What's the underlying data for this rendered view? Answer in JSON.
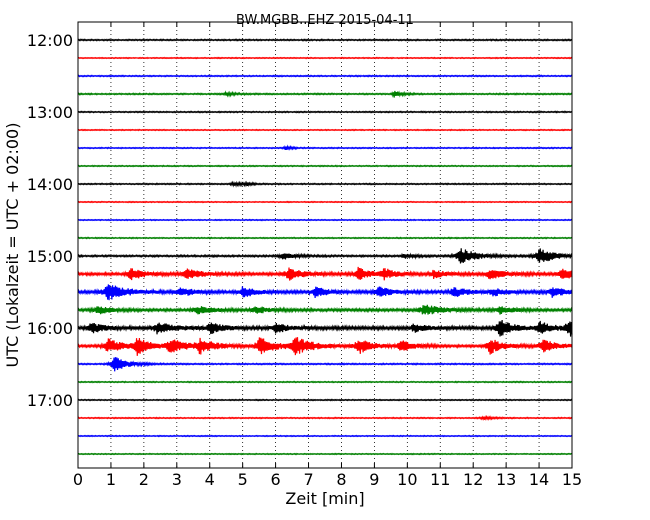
{
  "chart_data": {
    "type": "line",
    "title": "BW.MGBB..EHZ 2015-04-11",
    "xlabel": "Zeit  [min]",
    "ylabel": "UTC (Lokalzeit = UTC + 02:00)",
    "xlim": [
      0,
      15
    ],
    "x_ticks": [
      0,
      1,
      2,
      3,
      4,
      5,
      6,
      7,
      8,
      9,
      10,
      11,
      12,
      13,
      14,
      15
    ],
    "x_tick_labels": [
      "0",
      "1",
      "2",
      "3",
      "4",
      "5",
      "6",
      "7",
      "8",
      "9",
      "10",
      "11",
      "12",
      "13",
      "14",
      "15"
    ],
    "y_ticks": [
      {
        "label": "12:00",
        "trace_index": 0
      },
      {
        "label": "13:00",
        "trace_index": 4
      },
      {
        "label": "14:00",
        "trace_index": 8
      },
      {
        "label": "15:00",
        "trace_index": 12
      },
      {
        "label": "16:00",
        "trace_index": 16
      },
      {
        "label": "17:00",
        "trace_index": 20
      }
    ],
    "trace_interval_min": 15,
    "color_cycle": [
      "#000000",
      "#ff0000",
      "#0000ff",
      "#008000"
    ],
    "grid": "vertical dotted",
    "traces": [
      {
        "start": "12:00",
        "color": "#000000",
        "noise": 0.6,
        "events": []
      },
      {
        "start": "12:15",
        "color": "#ff0000",
        "noise": 0.45,
        "events": []
      },
      {
        "start": "12:30",
        "color": "#0000ff",
        "noise": 0.55,
        "events": []
      },
      {
        "start": "12:45",
        "color": "#008000",
        "noise": 0.6,
        "events": [
          {
            "t": 4.5,
            "a": 1.5,
            "w": 0.15
          },
          {
            "t": 9.6,
            "a": 3.0,
            "w": 0.12
          }
        ]
      },
      {
        "start": "13:00",
        "color": "#000000",
        "noise": 0.55,
        "events": []
      },
      {
        "start": "13:15",
        "color": "#ff0000",
        "noise": 0.45,
        "events": []
      },
      {
        "start": "13:30",
        "color": "#0000ff",
        "noise": 0.5,
        "events": [
          {
            "t": 6.3,
            "a": 1.8,
            "w": 0.1
          }
        ]
      },
      {
        "start": "13:45",
        "color": "#008000",
        "noise": 0.5,
        "events": []
      },
      {
        "start": "14:00",
        "color": "#000000",
        "noise": 0.55,
        "events": [
          {
            "t": 4.7,
            "a": 1.8,
            "w": 0.12
          },
          {
            "t": 5.1,
            "a": 1.5,
            "w": 0.1
          }
        ]
      },
      {
        "start": "14:15",
        "color": "#ff0000",
        "noise": 0.45,
        "events": []
      },
      {
        "start": "14:30",
        "color": "#0000ff",
        "noise": 0.45,
        "events": []
      },
      {
        "start": "14:45",
        "color": "#008000",
        "noise": 0.5,
        "events": []
      },
      {
        "start": "15:00",
        "color": "#000000",
        "noise": 0.8,
        "events": [
          {
            "t": 6.2,
            "a": 3.5,
            "w": 0.2
          },
          {
            "t": 9.9,
            "a": 2.5,
            "w": 0.15
          },
          {
            "t": 11.6,
            "a": 8.5,
            "w": 0.25
          },
          {
            "t": 14.0,
            "a": 8.0,
            "w": 0.25
          }
        ]
      },
      {
        "start": "15:15",
        "color": "#ff0000",
        "noise": 1.2,
        "events": [
          {
            "t": 1.6,
            "a": 6.5,
            "w": 0.2
          },
          {
            "t": 3.3,
            "a": 5.0,
            "w": 0.25
          },
          {
            "t": 6.4,
            "a": 6.0,
            "w": 0.25
          },
          {
            "t": 8.5,
            "a": 6.0,
            "w": 0.2
          },
          {
            "t": 9.3,
            "a": 5.0,
            "w": 0.2
          },
          {
            "t": 10.8,
            "a": 4.0,
            "w": 0.2
          },
          {
            "t": 12.5,
            "a": 5.0,
            "w": 0.25
          },
          {
            "t": 14.7,
            "a": 5.0,
            "w": 0.25
          }
        ]
      },
      {
        "start": "15:30",
        "color": "#0000ff",
        "noise": 1.3,
        "events": [
          {
            "t": 0.9,
            "a": 8.0,
            "w": 0.3
          },
          {
            "t": 3.1,
            "a": 4.5,
            "w": 0.2
          },
          {
            "t": 5.0,
            "a": 5.5,
            "w": 0.2
          },
          {
            "t": 7.2,
            "a": 5.0,
            "w": 0.2
          },
          {
            "t": 9.1,
            "a": 5.5,
            "w": 0.2
          },
          {
            "t": 11.4,
            "a": 5.0,
            "w": 0.2
          },
          {
            "t": 12.6,
            "a": 4.0,
            "w": 0.2
          },
          {
            "t": 14.4,
            "a": 5.0,
            "w": 0.2
          }
        ]
      },
      {
        "start": "15:45",
        "color": "#008000",
        "noise": 1.2,
        "events": [
          {
            "t": 0.6,
            "a": 4.0,
            "w": 0.2
          },
          {
            "t": 3.6,
            "a": 4.0,
            "w": 0.25
          },
          {
            "t": 5.4,
            "a": 3.5,
            "w": 0.2
          },
          {
            "t": 10.5,
            "a": 5.0,
            "w": 0.3
          },
          {
            "t": 12.8,
            "a": 4.0,
            "w": 0.2
          }
        ]
      },
      {
        "start": "16:00",
        "color": "#000000",
        "noise": 1.5,
        "events": [
          {
            "t": 0.4,
            "a": 5.0,
            "w": 0.2
          },
          {
            "t": 2.4,
            "a": 5.0,
            "w": 0.3
          },
          {
            "t": 4.0,
            "a": 5.5,
            "w": 0.2
          },
          {
            "t": 6.0,
            "a": 5.0,
            "w": 0.2
          },
          {
            "t": 10.2,
            "a": 4.0,
            "w": 0.2
          },
          {
            "t": 12.8,
            "a": 8.5,
            "w": 0.2
          },
          {
            "t": 14.0,
            "a": 6.0,
            "w": 0.2
          },
          {
            "t": 14.9,
            "a": 8.0,
            "w": 0.2
          }
        ]
      },
      {
        "start": "16:15",
        "color": "#ff0000",
        "noise": 1.1,
        "events": [
          {
            "t": 0.9,
            "a": 7.0,
            "w": 0.25
          },
          {
            "t": 1.8,
            "a": 8.0,
            "w": 0.2
          },
          {
            "t": 2.8,
            "a": 7.0,
            "w": 0.25
          },
          {
            "t": 3.7,
            "a": 7.0,
            "w": 0.25
          },
          {
            "t": 5.5,
            "a": 8.5,
            "w": 0.25
          },
          {
            "t": 6.6,
            "a": 8.0,
            "w": 0.3
          },
          {
            "t": 8.5,
            "a": 8.0,
            "w": 0.2
          },
          {
            "t": 9.8,
            "a": 6.0,
            "w": 0.2
          },
          {
            "t": 12.5,
            "a": 8.0,
            "w": 0.2
          },
          {
            "t": 14.1,
            "a": 6.0,
            "w": 0.25
          }
        ]
      },
      {
        "start": "16:30",
        "color": "#0000ff",
        "noise": 0.6,
        "events": [
          {
            "t": 1.1,
            "a": 8.5,
            "w": 0.2
          }
        ]
      },
      {
        "start": "16:45",
        "color": "#008000",
        "noise": 0.5,
        "events": []
      },
      {
        "start": "17:00",
        "color": "#000000",
        "noise": 0.5,
        "events": []
      },
      {
        "start": "17:15",
        "color": "#ff0000",
        "noise": 0.5,
        "events": [
          {
            "t": 12.3,
            "a": 1.5,
            "w": 0.15
          }
        ]
      },
      {
        "start": "17:30",
        "color": "#0000ff",
        "noise": 0.45,
        "events": []
      },
      {
        "start": "17:45",
        "color": "#008000",
        "noise": 0.45,
        "events": []
      }
    ]
  }
}
